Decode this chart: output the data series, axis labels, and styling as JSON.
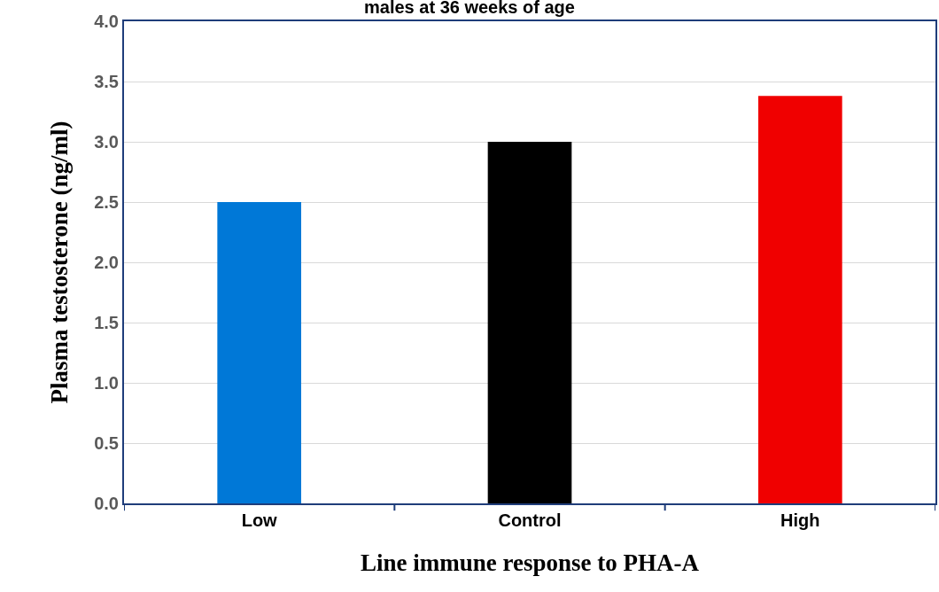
{
  "chart_data": {
    "type": "bar",
    "title": "males at 36 weeks of age",
    "xlabel": "Line immune response to PHA-A",
    "ylabel": "Plasma testosterone (ng/ml)",
    "categories": [
      "Low",
      "Control",
      "High"
    ],
    "values": [
      2.5,
      3.0,
      3.38
    ],
    "colors": [
      "#0078d7",
      "#000000",
      "#f00000"
    ],
    "ylim": [
      0,
      4.0
    ],
    "yticks": [
      {
        "value": 0,
        "label": "0.0"
      },
      {
        "value": 0.5,
        "label": "0.5"
      },
      {
        "value": 1,
        "label": "1.0"
      },
      {
        "value": 1.5,
        "label": "1.5"
      },
      {
        "value": 2,
        "label": "2.0"
      },
      {
        "value": 2.5,
        "label": "2.5"
      },
      {
        "value": 3,
        "label": "3.0"
      },
      {
        "value": 3.5,
        "label": "3.5"
      },
      {
        "value": 4,
        "label": "4.0"
      }
    ],
    "grid": "y"
  }
}
